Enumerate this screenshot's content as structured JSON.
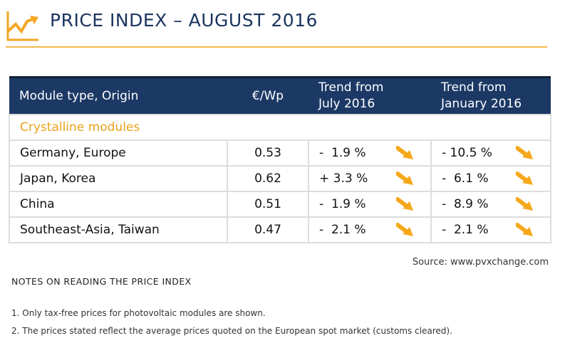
{
  "header": {
    "title": "PRICE INDEX – AUGUST 2016",
    "logo_icon": "chart-trend-up-icon",
    "accent": "#f2a81d",
    "navy": "#1c3966"
  },
  "table": {
    "columns": [
      "Module type, Origin",
      "€/Wp",
      "Trend from\nJuly 2016",
      "Trend from\nJanuary 2016"
    ],
    "col_july_1": "Trend from",
    "col_july_2": "July 2016",
    "col_jan_1": "Trend from",
    "col_jan_2": "January 2016",
    "category": "Crystalline modules",
    "rows": [
      {
        "origin": "Germany, Europe",
        "price": "0.53",
        "july": "-  1.9 %",
        "january": "- 10.5 %",
        "july_icon": "arrow-down-right-icon",
        "january_icon": "arrow-down-right-icon"
      },
      {
        "origin": "Japan, Korea",
        "price": "0.62",
        "july": "+ 3.3 %",
        "january": "-  6.1 %",
        "july_icon": "arrow-down-right-icon",
        "january_icon": "arrow-down-right-icon"
      },
      {
        "origin": "China",
        "price": "0.51",
        "july": "-  1.9 %",
        "january": "-  8.9 %",
        "july_icon": "arrow-down-right-icon",
        "january_icon": "arrow-down-right-icon"
      },
      {
        "origin": "Southeast-Asia, Taiwan",
        "price": "0.47",
        "july": "-  2.1 %",
        "january": "-  2.1 %",
        "july_icon": "arrow-down-right-icon",
        "january_icon": "arrow-down-right-icon"
      }
    ]
  },
  "source": "Source: www.pvxchange.com",
  "notes": {
    "heading": "NOTES ON READING THE PRICE INDEX",
    "items": [
      "1.  Only tax-free prices for photovoltaic modules are shown.",
      "2.  The prices stated reflect the average prices quoted on the European spot market (customs cleared)."
    ]
  }
}
